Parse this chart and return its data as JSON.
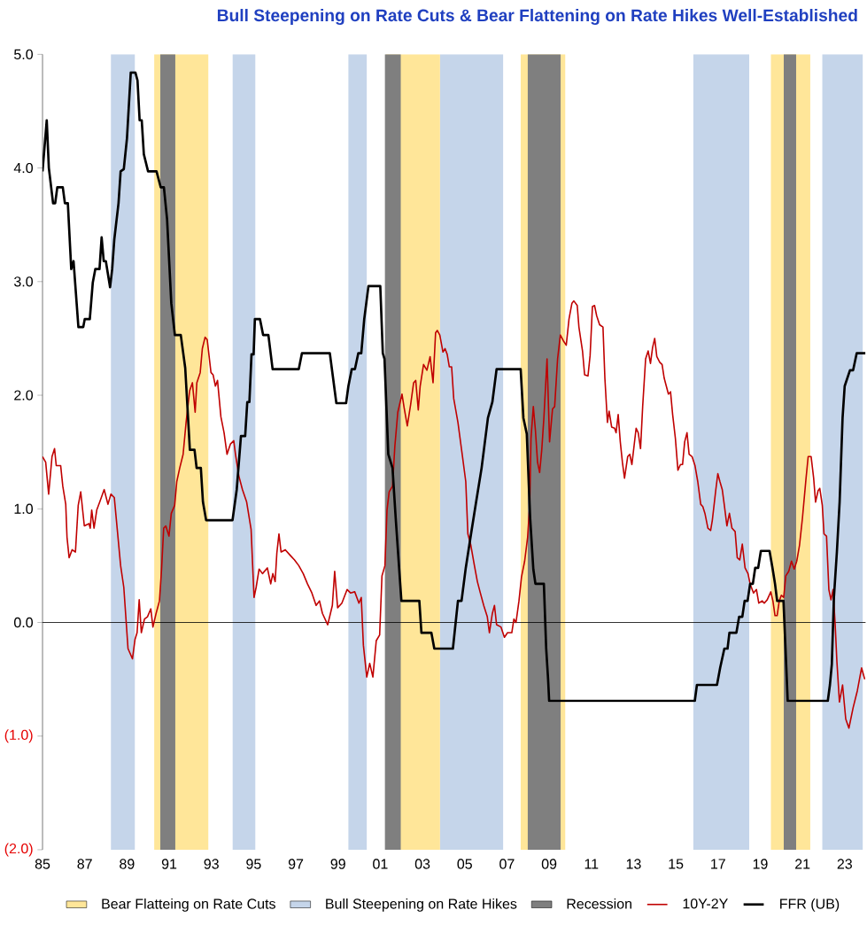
{
  "chart_data": {
    "type": "line",
    "title": "Bull Steepening on Rate Cuts & Bear Flattening on Rate Hikes Well-Established",
    "xlim": [
      1985,
      2024
    ],
    "ylim": [
      -2,
      5
    ],
    "xticks": [
      {
        "value": 1985,
        "label": "85"
      },
      {
        "value": 1987,
        "label": "87"
      },
      {
        "value": 1989,
        "label": "89"
      },
      {
        "value": 1991,
        "label": "91"
      },
      {
        "value": 1993,
        "label": "93"
      },
      {
        "value": 1995,
        "label": "95"
      },
      {
        "value": 1997,
        "label": "97"
      },
      {
        "value": 1999,
        "label": "99"
      },
      {
        "value": 2001,
        "label": "01"
      },
      {
        "value": 2003,
        "label": "03"
      },
      {
        "value": 2005,
        "label": "05"
      },
      {
        "value": 2007,
        "label": "07"
      },
      {
        "value": 2009,
        "label": "09"
      },
      {
        "value": 2011,
        "label": "11"
      },
      {
        "value": 2013,
        "label": "13"
      },
      {
        "value": 2015,
        "label": "15"
      },
      {
        "value": 2017,
        "label": "17"
      },
      {
        "value": 2019,
        "label": "19"
      },
      {
        "value": 2021,
        "label": "21"
      },
      {
        "value": 2023,
        "label": "23"
      }
    ],
    "yticks": [
      {
        "value": -2,
        "label": "(2.0)"
      },
      {
        "value": -1,
        "label": "(1.0)"
      },
      {
        "value": 0,
        "label": "0.0"
      },
      {
        "value": 1,
        "label": "1.0"
      },
      {
        "value": 2,
        "label": "2.0"
      },
      {
        "value": 3,
        "label": "3.0"
      },
      {
        "value": 4,
        "label": "4.0"
      },
      {
        "value": 5,
        "label": "5.0"
      }
    ],
    "legend": "bottom",
    "ref_lines": [
      {
        "axis": "y",
        "value": 0,
        "color": "#000000"
      }
    ],
    "bands": [
      {
        "axis": "x",
        "from": 1990.29,
        "to": 1992.86,
        "color": "#ffe699",
        "label": "Bear Flatteing on Rate Cuts"
      },
      {
        "axis": "x",
        "from": 2001.26,
        "to": 2003.83,
        "color": "#ffe699"
      },
      {
        "axis": "x",
        "from": 2007.65,
        "to": 2009.77,
        "color": "#ffe699"
      },
      {
        "axis": "x",
        "from": 2019.5,
        "to": 2021.37,
        "color": "#ffe699"
      },
      {
        "axis": "x",
        "from": 1988.24,
        "to": 1989.38,
        "color": "#c5d5ea",
        "label": "Bull Steepening on Rate Hikes"
      },
      {
        "axis": "x",
        "from": 1994.0,
        "to": 1995.08,
        "color": "#c5d5ea"
      },
      {
        "axis": "x",
        "from": 1999.49,
        "to": 2000.36,
        "color": "#c5d5ea"
      },
      {
        "axis": "x",
        "from": 2003.83,
        "to": 2006.82,
        "color": "#c5d5ea"
      },
      {
        "axis": "x",
        "from": 2015.83,
        "to": 2018.48,
        "color": "#c5d5ea"
      },
      {
        "axis": "x",
        "from": 2021.94,
        "to": 2023.86,
        "color": "#c5d5ea"
      },
      {
        "axis": "x",
        "from": 1990.58,
        "to": 1991.29,
        "color": "#7f7f7f",
        "label": "Recession"
      },
      {
        "axis": "x",
        "from": 2001.22,
        "to": 2001.97,
        "color": "#7f7f7f"
      },
      {
        "axis": "x",
        "from": 2007.98,
        "to": 2009.55,
        "color": "#7f7f7f"
      },
      {
        "axis": "x",
        "from": 2020.11,
        "to": 2020.7,
        "color": "#7f7f7f"
      }
    ],
    "series": [
      {
        "name": "10Y-2Y",
        "color": "#c00000",
        "x": [
          1985.0,
          1985.15,
          1985.29,
          1985.45,
          1985.57,
          1985.65,
          1985.86,
          1985.96,
          1986.1,
          1986.16,
          1986.26,
          1986.4,
          1986.56,
          1986.69,
          1986.81,
          1986.98,
          1987.2,
          1987.26,
          1987.33,
          1987.44,
          1987.57,
          1987.71,
          1987.92,
          1988.1,
          1988.24,
          1988.4,
          1988.5,
          1988.7,
          1988.85,
          1989.05,
          1989.26,
          1989.38,
          1989.48,
          1989.58,
          1989.68,
          1989.83,
          1989.97,
          1990.13,
          1990.23,
          1990.38,
          1990.54,
          1990.64,
          1990.74,
          1990.84,
          1990.99,
          1991.1,
          1991.26,
          1991.36,
          1991.5,
          1991.66,
          1991.8,
          1991.97,
          1992.1,
          1992.23,
          1992.31,
          1992.47,
          1992.57,
          1992.7,
          1992.8,
          1992.98,
          1993.08,
          1993.19,
          1993.29,
          1993.45,
          1993.6,
          1993.74,
          1993.9,
          1994.06,
          1994.14,
          1994.3,
          1994.47,
          1994.67,
          1994.88,
          1995.02,
          1995.12,
          1995.26,
          1995.42,
          1995.65,
          1995.81,
          1995.91,
          1996.02,
          1996.1,
          1996.2,
          1996.3,
          1996.5,
          1996.74,
          1996.94,
          1997.14,
          1997.35,
          1997.55,
          1997.76,
          1997.96,
          1998.12,
          1998.26,
          1998.51,
          1998.73,
          1998.84,
          1998.98,
          1999.18,
          1999.43,
          1999.59,
          1999.79,
          1999.99,
          2000.1,
          2000.2,
          2000.36,
          2000.5,
          2000.65,
          2000.81,
          2000.97,
          2001.08,
          2001.22,
          2001.32,
          2001.42,
          2001.58,
          2001.69,
          2001.83,
          2002.03,
          2002.13,
          2002.28,
          2002.44,
          2002.58,
          2002.68,
          2002.8,
          2002.89,
          2003.05,
          2003.21,
          2003.36,
          2003.5,
          2003.62,
          2003.7,
          2003.82,
          2003.97,
          2004.07,
          2004.17,
          2004.27,
          2004.38,
          2004.48,
          2004.68,
          2004.88,
          2005.05,
          2005.15,
          2005.29,
          2005.46,
          2005.6,
          2005.74,
          2005.9,
          2006.07,
          2006.17,
          2006.31,
          2006.41,
          2006.51,
          2006.72,
          2006.88,
          2007.03,
          2007.23,
          2007.33,
          2007.43,
          2007.57,
          2007.69,
          2007.84,
          2007.98,
          2008.08,
          2008.14,
          2008.25,
          2008.35,
          2008.45,
          2008.55,
          2008.65,
          2008.75,
          2008.9,
          2009.02,
          2009.16,
          2009.26,
          2009.4,
          2009.53,
          2009.67,
          2009.81,
          2009.94,
          2010.08,
          2010.17,
          2010.33,
          2010.41,
          2010.58,
          2010.68,
          2010.84,
          2010.94,
          2011.05,
          2011.15,
          2011.25,
          2011.39,
          2011.55,
          2011.64,
          2011.76,
          2011.84,
          2011.96,
          2012.1,
          2012.17,
          2012.27,
          2012.37,
          2012.47,
          2012.57,
          2012.72,
          2012.82,
          2012.92,
          2013.02,
          2013.12,
          2013.22,
          2013.33,
          2013.43,
          2013.57,
          2013.69,
          2013.8,
          2013.9,
          2014.0,
          2014.1,
          2014.24,
          2014.35,
          2014.45,
          2014.55,
          2014.65,
          2014.75,
          2014.85,
          2014.98,
          2015.1,
          2015.22,
          2015.32,
          2015.42,
          2015.53,
          2015.63,
          2015.77,
          2015.91,
          2016.04,
          2016.18,
          2016.28,
          2016.38,
          2016.52,
          2016.65,
          2016.73,
          2016.89,
          2016.99,
          2017.09,
          2017.2,
          2017.3,
          2017.42,
          2017.54,
          2017.66,
          2017.81,
          2017.91,
          2018.03,
          2018.15,
          2018.28,
          2018.42,
          2018.52,
          2018.68,
          2018.82,
          2018.93,
          2019.09,
          2019.19,
          2019.33,
          2019.5,
          2019.6,
          2019.7,
          2019.8,
          2019.9,
          2020.0,
          2020.11,
          2020.21,
          2020.35,
          2020.48,
          2020.61,
          2020.73,
          2020.86,
          2021.0,
          2021.17,
          2021.27,
          2021.41,
          2021.53,
          2021.62,
          2021.74,
          2021.82,
          2021.94,
          2022.02,
          2022.14,
          2022.25,
          2022.35,
          2022.45,
          2022.55,
          2022.63,
          2022.75,
          2022.9,
          2023.05,
          2023.2,
          2023.4,
          2023.6,
          2023.8,
          2023.95
        ],
        "values": [
          1.46,
          1.41,
          1.13,
          1.46,
          1.53,
          1.38,
          1.38,
          1.2,
          1.04,
          0.75,
          0.57,
          0.64,
          0.62,
          1.03,
          1.15,
          0.85,
          0.87,
          0.83,
          0.99,
          0.83,
          0.99,
          1.06,
          1.17,
          1.04,
          1.13,
          1.1,
          0.9,
          0.5,
          0.31,
          -0.23,
          -0.32,
          -0.15,
          -0.09,
          0.2,
          -0.09,
          0.03,
          0.05,
          0.12,
          -0.04,
          0.08,
          0.19,
          0.47,
          0.83,
          0.85,
          0.76,
          0.96,
          1.03,
          1.24,
          1.36,
          1.48,
          1.76,
          2.04,
          2.11,
          1.85,
          2.11,
          2.2,
          2.41,
          2.51,
          2.49,
          2.2,
          2.18,
          2.08,
          2.13,
          1.81,
          1.67,
          1.48,
          1.57,
          1.6,
          1.48,
          1.29,
          1.17,
          1.06,
          0.82,
          0.22,
          0.31,
          0.47,
          0.43,
          0.48,
          0.34,
          0.43,
          0.36,
          0.61,
          0.78,
          0.62,
          0.64,
          0.59,
          0.55,
          0.5,
          0.43,
          0.34,
          0.26,
          0.15,
          0.19,
          0.08,
          -0.02,
          0.15,
          0.45,
          0.13,
          0.17,
          0.29,
          0.26,
          0.27,
          0.17,
          0.22,
          -0.2,
          -0.48,
          -0.36,
          -0.48,
          -0.16,
          -0.11,
          0.41,
          0.5,
          0.99,
          1.15,
          1.2,
          1.55,
          1.85,
          2.01,
          1.89,
          1.73,
          1.92,
          2.11,
          2.13,
          1.87,
          2.08,
          2.27,
          2.22,
          2.34,
          2.11,
          2.55,
          2.57,
          2.53,
          2.38,
          2.41,
          2.36,
          2.25,
          2.25,
          1.97,
          1.76,
          1.48,
          1.24,
          0.78,
          0.68,
          0.5,
          0.36,
          0.26,
          0.15,
          0.05,
          -0.09,
          0.08,
          0.15,
          -0.02,
          -0.04,
          -0.13,
          -0.09,
          -0.09,
          0.03,
          0.0,
          0.19,
          0.4,
          0.54,
          0.75,
          1.03,
          1.62,
          1.9,
          1.69,
          1.41,
          1.32,
          1.52,
          1.8,
          2.32,
          1.59,
          1.88,
          1.9,
          2.32,
          2.53,
          2.48,
          2.44,
          2.67,
          2.81,
          2.83,
          2.79,
          2.6,
          2.39,
          2.18,
          2.17,
          2.35,
          2.78,
          2.79,
          2.7,
          2.62,
          2.6,
          2.15,
          1.76,
          1.86,
          1.72,
          1.71,
          1.67,
          1.83,
          1.59,
          1.41,
          1.27,
          1.46,
          1.48,
          1.39,
          1.55,
          1.71,
          1.67,
          1.53,
          1.9,
          2.32,
          2.39,
          2.28,
          2.42,
          2.5,
          2.34,
          2.29,
          2.27,
          2.15,
          2.08,
          2.01,
          2.03,
          1.83,
          1.62,
          1.34,
          1.39,
          1.39,
          1.59,
          1.67,
          1.48,
          1.46,
          1.38,
          1.24,
          1.04,
          1.02,
          0.96,
          0.83,
          0.81,
          0.9,
          1.16,
          1.31,
          1.24,
          1.17,
          1.03,
          0.85,
          0.96,
          0.83,
          0.8,
          0.57,
          0.55,
          0.69,
          0.48,
          0.43,
          0.34,
          0.26,
          0.29,
          0.17,
          0.19,
          0.17,
          0.2,
          0.27,
          0.19,
          0.06,
          0.06,
          0.19,
          0.24,
          0.22,
          0.41,
          0.45,
          0.54,
          0.47,
          0.54,
          0.68,
          0.92,
          1.27,
          1.46,
          1.46,
          1.27,
          1.06,
          1.16,
          1.18,
          1.03,
          0.78,
          0.76,
          0.29,
          0.2,
          0.29,
          -0.02,
          -0.34,
          -0.7,
          -0.55,
          -0.85,
          -0.93,
          -0.75,
          -0.6,
          -0.4,
          -0.5
        ]
      },
      {
        "name": "FFR (UB)",
        "color": "#000000",
        "x": [
          1985.0,
          1985.2,
          1985.3,
          1985.5,
          1985.6,
          1985.7,
          1985.96,
          1986.06,
          1986.2,
          1986.36,
          1986.47,
          1986.7,
          1986.93,
          1987.0,
          1987.24,
          1987.38,
          1987.5,
          1987.7,
          1987.8,
          1987.9,
          1988.0,
          1988.2,
          1988.3,
          1988.4,
          1988.6,
          1988.7,
          1988.85,
          1989.0,
          1989.18,
          1989.4,
          1989.5,
          1989.6,
          1989.7,
          1989.8,
          1990.0,
          1990.4,
          1990.6,
          1990.75,
          1990.9,
          1991.1,
          1991.27,
          1991.55,
          1991.76,
          1991.98,
          1992.2,
          1992.3,
          1992.5,
          1992.6,
          1992.75,
          1994.0,
          1994.2,
          1994.4,
          1994.6,
          1994.7,
          1994.8,
          1994.9,
          1995.0,
          1995.06,
          1995.3,
          1995.45,
          1995.7,
          1995.9,
          1997.14,
          1997.29,
          1998.61,
          1998.92,
          1999.38,
          1999.49,
          1999.65,
          1999.8,
          1999.96,
          2000.1,
          2000.24,
          2000.44,
          2001.0,
          2001.12,
          2001.2,
          2001.38,
          2001.58,
          2001.73,
          2002.0,
          2002.85,
          2002.95,
          2003.42,
          2003.56,
          2004.44,
          2004.52,
          2004.68,
          2004.85,
          2005.05,
          2005.3,
          2005.54,
          2005.8,
          2006.1,
          2006.31,
          2006.51,
          2007.65,
          2007.78,
          2007.94,
          2008.1,
          2008.25,
          2008.35,
          2008.75,
          2008.86,
          2008.95,
          2009.0,
          2015.9,
          2016.0,
          2016.95,
          2017.1,
          2017.3,
          2017.45,
          2017.54,
          2017.87,
          2018.0,
          2018.15,
          2018.26,
          2018.4,
          2018.52,
          2018.65,
          2018.76,
          2018.9,
          2019.03,
          2019.44,
          2019.58,
          2019.7,
          2019.8,
          2020.1,
          2020.19,
          2020.3,
          2022.2,
          2022.3,
          2022.39,
          2022.49,
          2022.63,
          2022.76,
          2022.9,
          2023.0,
          2023.25,
          2023.4,
          2023.57,
          2023.98
        ],
        "values": [
          3.97,
          4.42,
          4.0,
          3.69,
          3.69,
          3.83,
          3.83,
          3.69,
          3.69,
          3.11,
          3.18,
          2.6,
          2.6,
          2.67,
          2.67,
          2.99,
          3.11,
          3.11,
          3.39,
          3.18,
          3.18,
          2.95,
          3.11,
          3.37,
          3.69,
          3.97,
          3.99,
          4.26,
          4.84,
          4.84,
          4.77,
          4.42,
          4.42,
          4.12,
          3.97,
          3.97,
          3.83,
          3.83,
          3.55,
          2.81,
          2.53,
          2.53,
          2.24,
          1.52,
          1.52,
          1.36,
          1.36,
          1.06,
          0.9,
          0.9,
          1.17,
          1.64,
          1.64,
          1.94,
          1.94,
          2.36,
          2.36,
          2.67,
          2.67,
          2.53,
          2.53,
          2.23,
          2.23,
          2.37,
          2.37,
          1.93,
          1.93,
          2.08,
          2.23,
          2.23,
          2.37,
          2.37,
          2.67,
          2.96,
          2.96,
          2.37,
          2.32,
          1.48,
          1.36,
          0.92,
          0.19,
          0.19,
          -0.09,
          -0.09,
          -0.23,
          -0.23,
          -0.09,
          0.19,
          0.19,
          0.48,
          0.78,
          1.06,
          1.36,
          1.8,
          1.94,
          2.23,
          2.23,
          1.8,
          1.66,
          0.92,
          0.47,
          0.34,
          0.34,
          -0.23,
          -0.5,
          -0.69,
          -0.69,
          -0.55,
          -0.55,
          -0.4,
          -0.23,
          -0.23,
          -0.09,
          -0.09,
          0.05,
          0.05,
          0.19,
          0.19,
          0.34,
          0.34,
          0.48,
          0.48,
          0.63,
          0.63,
          0.48,
          0.34,
          0.19,
          0.19,
          -0.2,
          -0.69,
          -0.69,
          -0.55,
          -0.37,
          0.22,
          0.62,
          1.06,
          1.8,
          2.08,
          2.22,
          2.22,
          2.37,
          2.37
        ]
      }
    ]
  }
}
